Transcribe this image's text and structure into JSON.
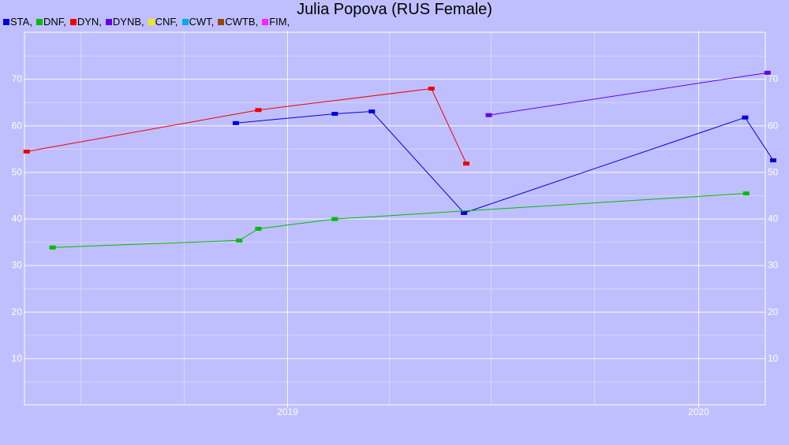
{
  "chart_data": {
    "type": "line",
    "title": "Julia Popova (RUS Female)",
    "xlabel": "",
    "ylabel": "",
    "x_axis": {
      "type": "date",
      "range": [
        "2018-05-12",
        "2020-03-01"
      ],
      "major_ticks": [
        {
          "date": "2019-01-01",
          "label": "2019"
        },
        {
          "date": "2020-01-01",
          "label": "2020"
        }
      ],
      "minor_ticks": [
        "2018-07-01",
        "2018-10-01",
        "2019-04-01",
        "2019-07-01",
        "2019-10-01"
      ]
    },
    "y_axis": {
      "range": [
        0,
        80
      ],
      "ticks": [
        10,
        20,
        30,
        40,
        50,
        60,
        70
      ],
      "minor_ticks": [
        5,
        15,
        25,
        35,
        45,
        55,
        65,
        75
      ],
      "labels_left": true,
      "labels_right": true
    },
    "grid": true,
    "legend": {
      "position": "top-left"
    },
    "series": [
      {
        "name": "STA",
        "label": "STA,",
        "color": "#0000dd",
        "points": [
          {
            "x": "2018-11-16",
            "y": 60.5
          },
          {
            "x": "2019-02-12",
            "y": 62.5
          },
          {
            "x": "2019-03-17",
            "y": 63.0
          },
          {
            "x": "2019-06-07",
            "y": 41.2
          },
          {
            "x": "2020-02-12",
            "y": 61.7
          },
          {
            "x": "2020-03-08",
            "y": 52.5
          }
        ]
      },
      {
        "name": "DNF",
        "label": "DNF,",
        "color": "#00bb00",
        "points": [
          {
            "x": "2018-06-06",
            "y": 33.8
          },
          {
            "x": "2018-11-19",
            "y": 35.3
          },
          {
            "x": "2018-12-06",
            "y": 37.8
          },
          {
            "x": "2019-02-12",
            "y": 39.9
          },
          {
            "x": "2020-02-13",
            "y": 45.4
          }
        ]
      },
      {
        "name": "DYN",
        "label": "DYN,",
        "color": "#ee0000",
        "points": [
          {
            "x": "2018-05-14",
            "y": 54.4
          },
          {
            "x": "2018-12-06",
            "y": 63.3
          },
          {
            "x": "2019-05-09",
            "y": 67.9
          },
          {
            "x": "2019-06-09",
            "y": 51.8
          }
        ]
      },
      {
        "name": "DYNB",
        "label": "DYNB,",
        "color": "#6600ee",
        "points": [
          {
            "x": "2019-06-29",
            "y": 62.2
          },
          {
            "x": "2020-03-03",
            "y": 71.3
          }
        ]
      },
      {
        "name": "CNF",
        "label": "CNF,",
        "color": "#eeee00",
        "points": []
      },
      {
        "name": "CWT",
        "label": "CWT,",
        "color": "#00aaee",
        "points": []
      },
      {
        "name": "CWTB",
        "label": "CWTB,",
        "color": "#994400",
        "points": []
      },
      {
        "name": "FIM",
        "label": "FIM,",
        "color": "#ff22ff",
        "points": []
      }
    ]
  }
}
